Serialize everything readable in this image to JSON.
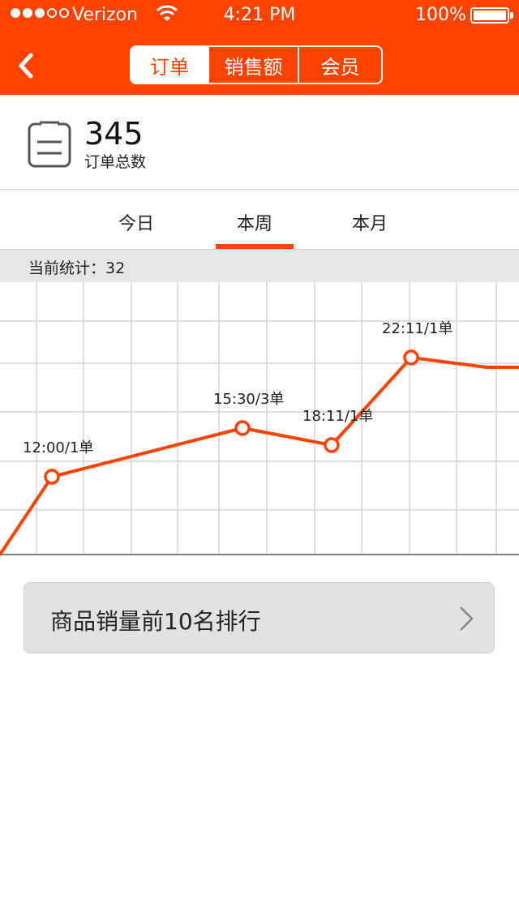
{
  "status_bar": {
    "carrier": "Verizon",
    "time": "4:21 PM",
    "battery_percent": "100%",
    "signal_strength": 3,
    "signal_max": 5
  },
  "nav": {
    "back_icon": "chevron-left-icon",
    "segments": [
      {
        "label": "订单",
        "active": true
      },
      {
        "label": "销售额",
        "active": false
      },
      {
        "label": "会员",
        "active": false
      }
    ]
  },
  "summary": {
    "icon": "clipboard-icon",
    "count": "345",
    "label": "订单总数"
  },
  "period_tabs": [
    {
      "label": "今日",
      "active": false
    },
    {
      "label": "本周",
      "active": true
    },
    {
      "label": "本月",
      "active": false
    }
  ],
  "current_stat": "当前统计：32",
  "colors": {
    "accent": "#FF4200",
    "grid": "#d4d4d4",
    "button_bg": "#e2e2e2"
  },
  "chart_data": {
    "type": "line",
    "title": "",
    "xlabel": "",
    "ylabel": "",
    "grid": true,
    "x_domain": [
      0,
      640
    ],
    "y_domain": [
      0,
      5.6
    ],
    "points": [
      {
        "x": 0,
        "y": 0
      },
      {
        "x": 64,
        "y": 1.6,
        "label": "12:00/1单"
      },
      {
        "x": 299,
        "y": 2.6,
        "label": "15:30/3单"
      },
      {
        "x": 409,
        "y": 2.25,
        "label": "18:11/1单"
      },
      {
        "x": 507,
        "y": 4.05,
        "label": "22:11/1单"
      },
      {
        "x": 600,
        "y": 3.85
      },
      {
        "x": 640,
        "y": 3.85
      }
    ]
  },
  "ranking_button": {
    "label": "商品销量前10名排行",
    "icon": "chevron-right-icon"
  }
}
